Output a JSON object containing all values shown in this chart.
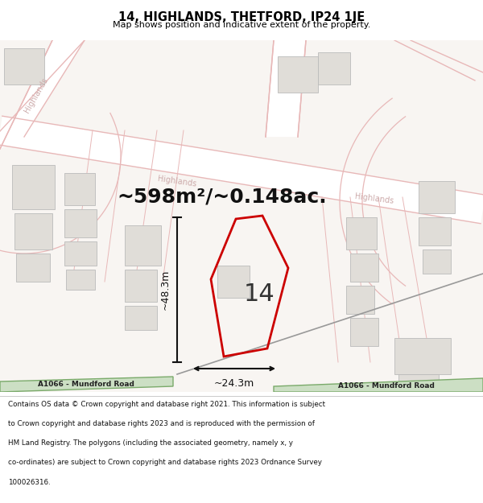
{
  "title_line1": "14, HIGHLANDS, THETFORD, IP24 1JE",
  "title_line2": "Map shows position and indicative extent of the property.",
  "area_text": "~598m²/~0.148ac.",
  "dim_width": "~24.3m",
  "dim_height": "~48.3m",
  "plot_number": "14",
  "footer_text": "Contains OS data © Crown copyright and database right 2021. This information is subject to Crown copyright and database rights 2023 and is reproduced with the permission of HM Land Registry. The polygons (including the associated geometry, namely x, y co-ordinates) are subject to Crown copyright and database rights 2023 Ordnance Survey 100026316.",
  "road_label_left": "A1066 - Mundford Road",
  "road_label_right": "A1066 - Mundford Road",
  "street_label": "Highlands",
  "map_bg": "#f7f4f1",
  "road_green_fill": "#ccdfc4",
  "road_green_outline": "#7aaa6a",
  "plot_outline": "#cc0000",
  "building_fill": "#e0ddd8",
  "building_outline": "#bbbbbb",
  "road_line_color": "#e8b8b8",
  "road_outline_color": "#d09090",
  "street_text_color": "#ccaaaa",
  "footer_bg": "#ffffff",
  "arrow_color": "#111111",
  "dim_line_color": "#111111",
  "title_bg": "#ffffff",
  "map_road_bg": "#ffffff"
}
